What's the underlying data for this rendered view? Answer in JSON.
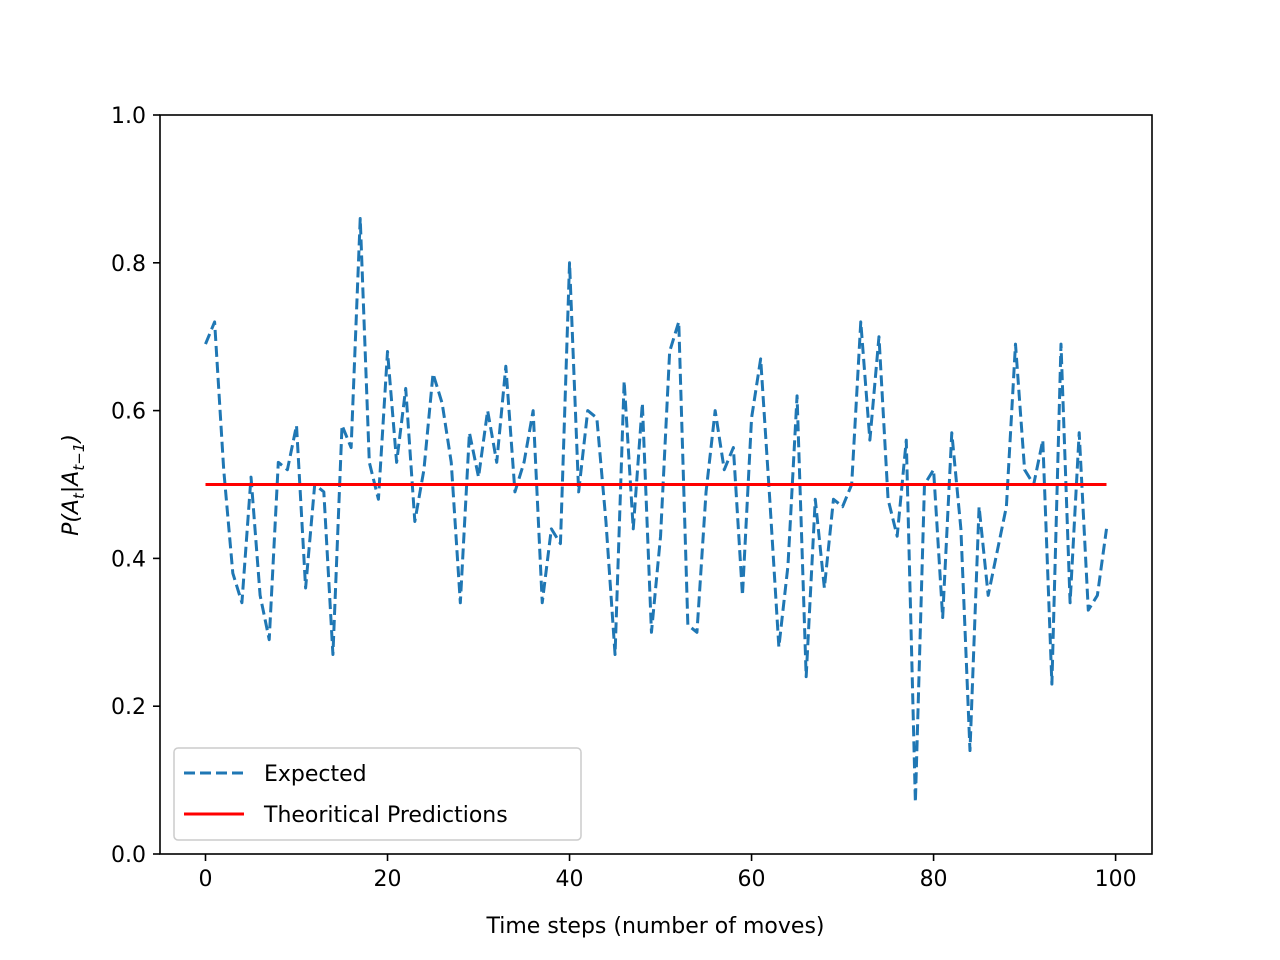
{
  "chart_data": {
    "type": "line",
    "title": "",
    "xlabel": "Time steps (number of moves)",
    "ylabel": "P(A|A)",
    "ylabel_main": "P(A",
    "ylabel_sub1": "t",
    "ylabel_mid": "|A",
    "ylabel_sub2": "t−1",
    "ylabel_end": ")",
    "xlim": [
      -5,
      104
    ],
    "ylim": [
      0.0,
      1.0
    ],
    "xticks": [
      0,
      20,
      40,
      60,
      80,
      100
    ],
    "xtick_labels": [
      "0",
      "20",
      "40",
      "60",
      "80",
      "100"
    ],
    "yticks": [
      0.0,
      0.2,
      0.4,
      0.6,
      0.8,
      1.0
    ],
    "ytick_labels": [
      "0.0",
      "0.2",
      "0.4",
      "0.6",
      "0.8",
      "1.0"
    ],
    "grid": false,
    "legend_position": "lower-left",
    "series": [
      {
        "name": "Expected",
        "color": "#1f77b4",
        "style": "dashed",
        "x": [
          0,
          1,
          2,
          3,
          4,
          5,
          6,
          7,
          8,
          9,
          10,
          11,
          12,
          13,
          14,
          15,
          16,
          17,
          18,
          19,
          20,
          21,
          22,
          23,
          24,
          25,
          26,
          27,
          28,
          29,
          30,
          31,
          32,
          33,
          34,
          35,
          36,
          37,
          38,
          39,
          40,
          41,
          42,
          43,
          44,
          45,
          46,
          47,
          48,
          49,
          50,
          51,
          52,
          53,
          54,
          55,
          56,
          57,
          58,
          59,
          60,
          61,
          62,
          63,
          64,
          65,
          66,
          67,
          68,
          69,
          70,
          71,
          72,
          73,
          74,
          75,
          76,
          77,
          78,
          79,
          80,
          81,
          82,
          83,
          84,
          85,
          86,
          87,
          88,
          89,
          90,
          91,
          92,
          93,
          94,
          95,
          96,
          97,
          98,
          99
        ],
        "values": [
          0.69,
          0.72,
          0.52,
          0.38,
          0.34,
          0.51,
          0.35,
          0.29,
          0.53,
          0.52,
          0.58,
          0.36,
          0.5,
          0.49,
          0.27,
          0.58,
          0.55,
          0.86,
          0.53,
          0.48,
          0.68,
          0.53,
          0.63,
          0.45,
          0.52,
          0.65,
          0.61,
          0.53,
          0.34,
          0.57,
          0.51,
          0.6,
          0.53,
          0.66,
          0.49,
          0.53,
          0.6,
          0.34,
          0.44,
          0.42,
          0.8,
          0.49,
          0.6,
          0.59,
          0.45,
          0.27,
          0.64,
          0.44,
          0.61,
          0.3,
          0.43,
          0.68,
          0.72,
          0.31,
          0.3,
          0.49,
          0.6,
          0.52,
          0.55,
          0.35,
          0.59,
          0.67,
          0.48,
          0.28,
          0.39,
          0.62,
          0.24,
          0.48,
          0.36,
          0.48,
          0.47,
          0.5,
          0.72,
          0.56,
          0.7,
          0.48,
          0.43,
          0.56,
          0.07,
          0.5,
          0.52,
          0.32,
          0.57,
          0.44,
          0.14,
          0.47,
          0.35,
          0.41,
          0.47,
          0.69,
          0.52,
          0.5,
          0.56,
          0.23,
          0.69,
          0.34,
          0.57,
          0.33,
          0.35,
          0.44
        ]
      },
      {
        "name": "Theoritical Predictions",
        "color": "#ff0000",
        "style": "solid",
        "x": [
          0,
          99
        ],
        "values": [
          0.5,
          0.5
        ]
      }
    ]
  }
}
